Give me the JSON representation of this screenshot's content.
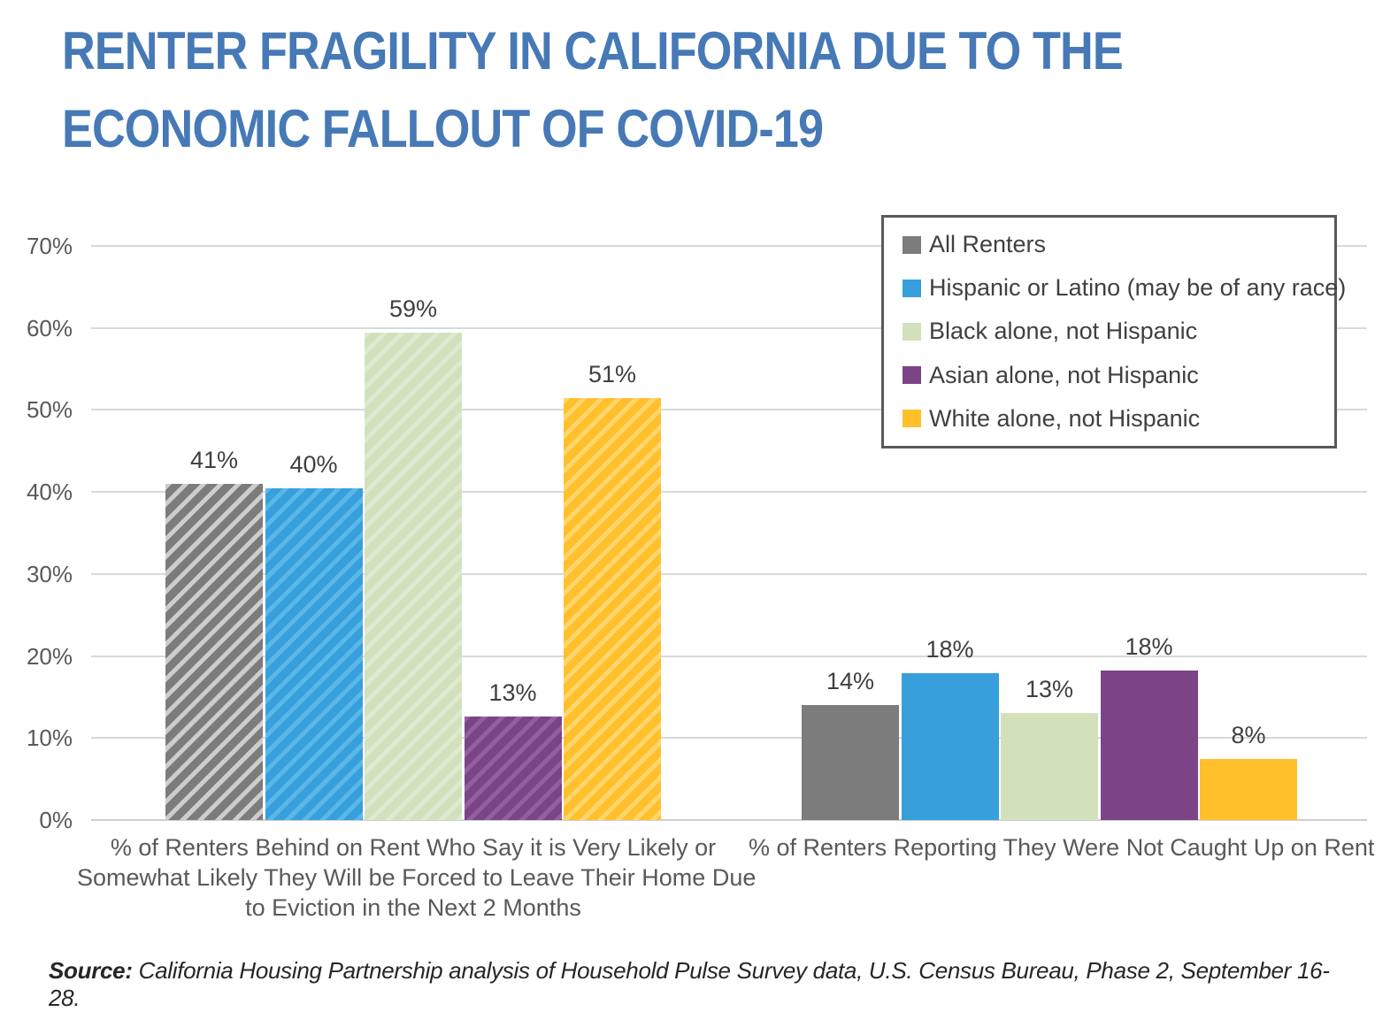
{
  "title_lines": [
    "RENTER FRAGILITY IN CALIFORNIA DUE TO THE",
    "ECONOMIC FALLOUT OF COVID-19"
  ],
  "colors": {
    "title": "#4679B6",
    "axis_text": "#595959",
    "data_label": "#3F3F3F",
    "gridline": "#D9D9D9",
    "legend_border": "#595959",
    "legend_text": "#404040"
  },
  "chart_data": {
    "type": "bar",
    "title": "Renter fragility in California due to the economic fallout of COVID-19",
    "ylim": [
      0,
      70
    ],
    "y_ticks": [
      "70%",
      "60%",
      "50%",
      "40%",
      "30%",
      "20%",
      "10%",
      "0%"
    ],
    "grid": true,
    "legend_position": "top-right",
    "categories": [
      {
        "label_lines": [
          "% of Renters Behind on Rent Who Say it is Very Likely or",
          "Somewhat Likely They Will be Forced to Leave Their Home Due",
          "to Eviction in the Next 2 Months"
        ],
        "hatched": true
      },
      {
        "label_lines": [
          "% of Renters Reporting They Were Not Caught Up on Rent"
        ],
        "hatched": false
      }
    ],
    "series": [
      {
        "name": "All Renters",
        "color": "#7C7C7C",
        "hatch_color": "#CDCDCD",
        "values": [
          41,
          14
        ],
        "bar_heights_pct": [
          41.0,
          14.0
        ]
      },
      {
        "name": "Hispanic or Latino (may be of any race)",
        "color": "#379FDB",
        "hatch_color": "#5BB7E8",
        "values": [
          40,
          18
        ],
        "bar_heights_pct": [
          40.4,
          17.9
        ]
      },
      {
        "name": "Black alone, not Hispanic",
        "color": "#D2E1BC",
        "hatch_color": "#DFE9CF",
        "values": [
          59,
          13
        ],
        "bar_heights_pct": [
          59.4,
          13.0
        ]
      },
      {
        "name": "Asian alone, not Hispanic",
        "color": "#7A4487",
        "hatch_color": "#925FA1",
        "values": [
          13,
          18
        ],
        "bar_heights_pct": [
          12.6,
          18.2
        ]
      },
      {
        "name": "White alone, not Hispanic",
        "color": "#FFC02B",
        "hatch_color": "#FFD56E",
        "values": [
          51,
          8
        ],
        "bar_heights_pct": [
          51.4,
          7.4
        ]
      }
    ]
  },
  "source": {
    "label": "Source:",
    "text": " California Housing Partnership analysis of Household Pulse Survey data, U.S. Census Bureau, Phase 2, September 16-28."
  }
}
